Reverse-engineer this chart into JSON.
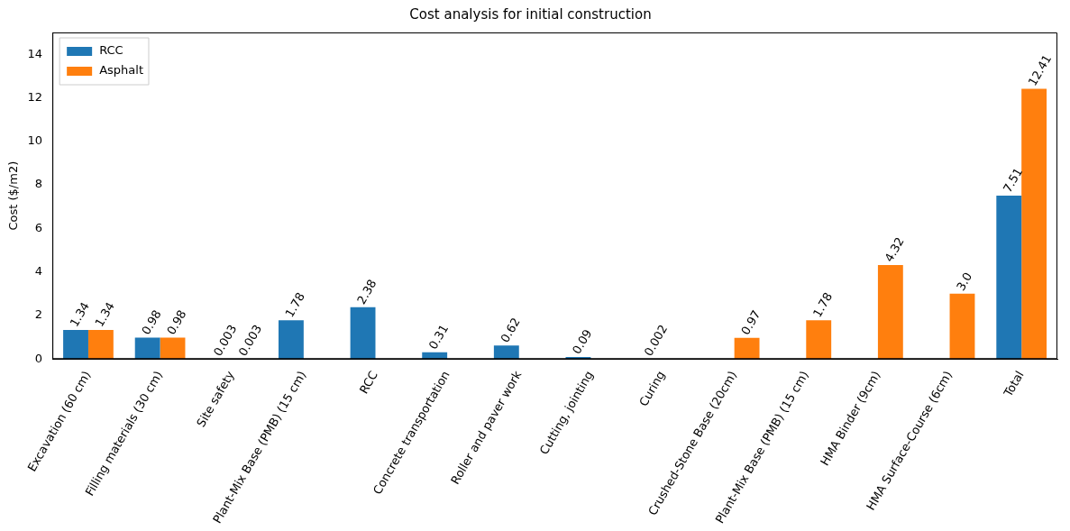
{
  "chart_data": {
    "type": "bar",
    "title": "Cost analysis for initial construction",
    "ylabel": "Cost ($/m2)",
    "categories": [
      "Excavation (60 cm)",
      "Filling materials (30 cm)",
      "Site safety",
      "Plant-Mix Base (PMB) (15 cm)",
      "RCC",
      "Concrete transportation",
      "Roller and paver work",
      "Cutting, jointing",
      "Curing",
      "Crushed-Stone Base (20cm)",
      "Plant-Mix Base (PMB) (15 cm)",
      "HMA Binder (9cm)",
      "HMA Surface-Course (6cm)",
      "Total"
    ],
    "series": [
      {
        "name": "RCC",
        "color": "#1f77b4",
        "values": [
          1.34,
          0.98,
          0.003,
          1.78,
          2.38,
          0.31,
          0.62,
          0.09,
          0.002,
          null,
          null,
          null,
          null,
          7.51
        ],
        "value_labels": [
          "1.34",
          "0.98",
          "0.003",
          "1.78",
          "2.38",
          "0.31",
          "0.62",
          "0.09",
          "0.002",
          null,
          null,
          null,
          null,
          "7.51"
        ]
      },
      {
        "name": "Asphalt",
        "color": "#ff7f0e",
        "values": [
          1.34,
          0.98,
          0.003,
          null,
          null,
          null,
          null,
          null,
          null,
          0.97,
          1.78,
          4.32,
          3.0,
          12.41
        ],
        "value_labels": [
          "1.34",
          "0.98",
          "0.003",
          null,
          null,
          null,
          null,
          null,
          null,
          "0.97",
          "1.78",
          "4.32",
          "3.0",
          "12.41"
        ]
      }
    ],
    "ylim": [
      0,
      15
    ],
    "yticks": [
      0,
      2,
      4,
      6,
      8,
      10,
      12,
      14
    ],
    "grid": false,
    "legend": "top left"
  }
}
